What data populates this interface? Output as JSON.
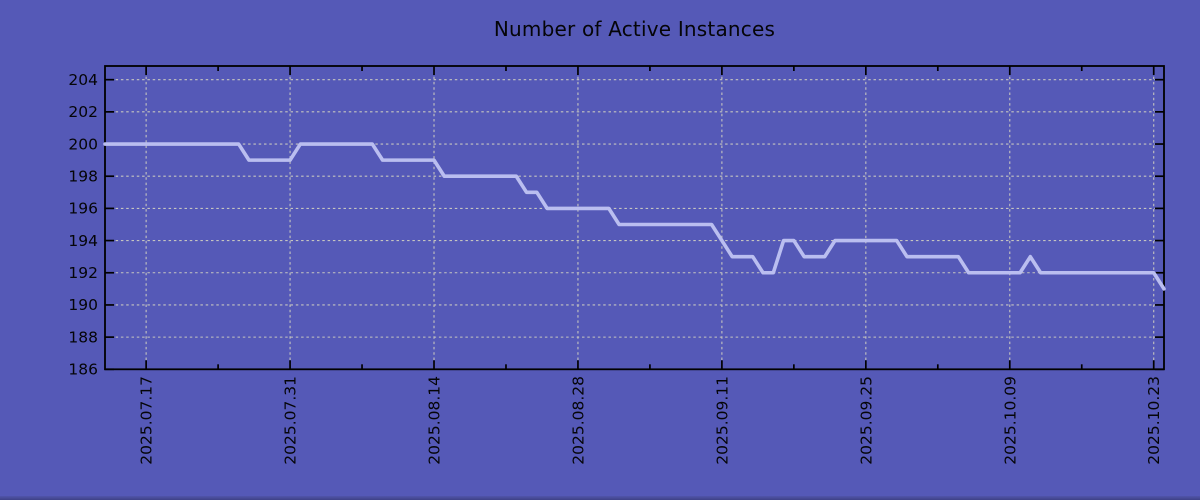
{
  "chart_data": {
    "type": "line",
    "title": "Number of Active Instances",
    "xlabel": "",
    "ylabel": "",
    "legend": null,
    "grid": true,
    "x_start_date": "2025.07.13",
    "x_end_date": "2025.10.24",
    "sample_interval_days": 1,
    "values": [
      200,
      200,
      200,
      200,
      200,
      200,
      200,
      200,
      200,
      200,
      200,
      200,
      200,
      200,
      199,
      199,
      199,
      199,
      199,
      200,
      200,
      200,
      200,
      200,
      200,
      200,
      200,
      199,
      199,
      199,
      199,
      199,
      199,
      198,
      198,
      198,
      198,
      198,
      198,
      198,
      198,
      197,
      197,
      196,
      196,
      196,
      196,
      196,
      196,
      196,
      195,
      195,
      195,
      195,
      195,
      195,
      195,
      195,
      195,
      195,
      194,
      193,
      193,
      193,
      192,
      192,
      194,
      194,
      193,
      193,
      193,
      194,
      194,
      194,
      194,
      194,
      194,
      194,
      193,
      193,
      193,
      193,
      193,
      193,
      192,
      192,
      192,
      192,
      192,
      192,
      193,
      192,
      192,
      192,
      192,
      192,
      192,
      192,
      192,
      192,
      192,
      192,
      192,
      191
    ],
    "xlim_days": [
      0,
      103
    ],
    "x_major_ticks": [
      {
        "label": "2025.07.17",
        "day": 4
      },
      {
        "label": "2025.07.31",
        "day": 18
      },
      {
        "label": "2025.08.14",
        "day": 32
      },
      {
        "label": "2025.08.28",
        "day": 46
      },
      {
        "label": "2025.09.11",
        "day": 60
      },
      {
        "label": "2025.09.25",
        "day": 74
      },
      {
        "label": "2025.10.09",
        "day": 88
      },
      {
        "label": "2025.10.23",
        "day": 102
      }
    ],
    "x_minor_tick_days": [
      11,
      25,
      39,
      53,
      67,
      81,
      95
    ],
    "y_ticks": [
      186,
      188,
      190,
      192,
      194,
      196,
      198,
      200,
      202,
      204
    ],
    "ylim": [
      186,
      204.85
    ],
    "colors": {
      "background": "#5559b7",
      "line": "#babef0",
      "grid": "#c5c5c0",
      "axis": "#000000",
      "text": "#050508"
    }
  }
}
